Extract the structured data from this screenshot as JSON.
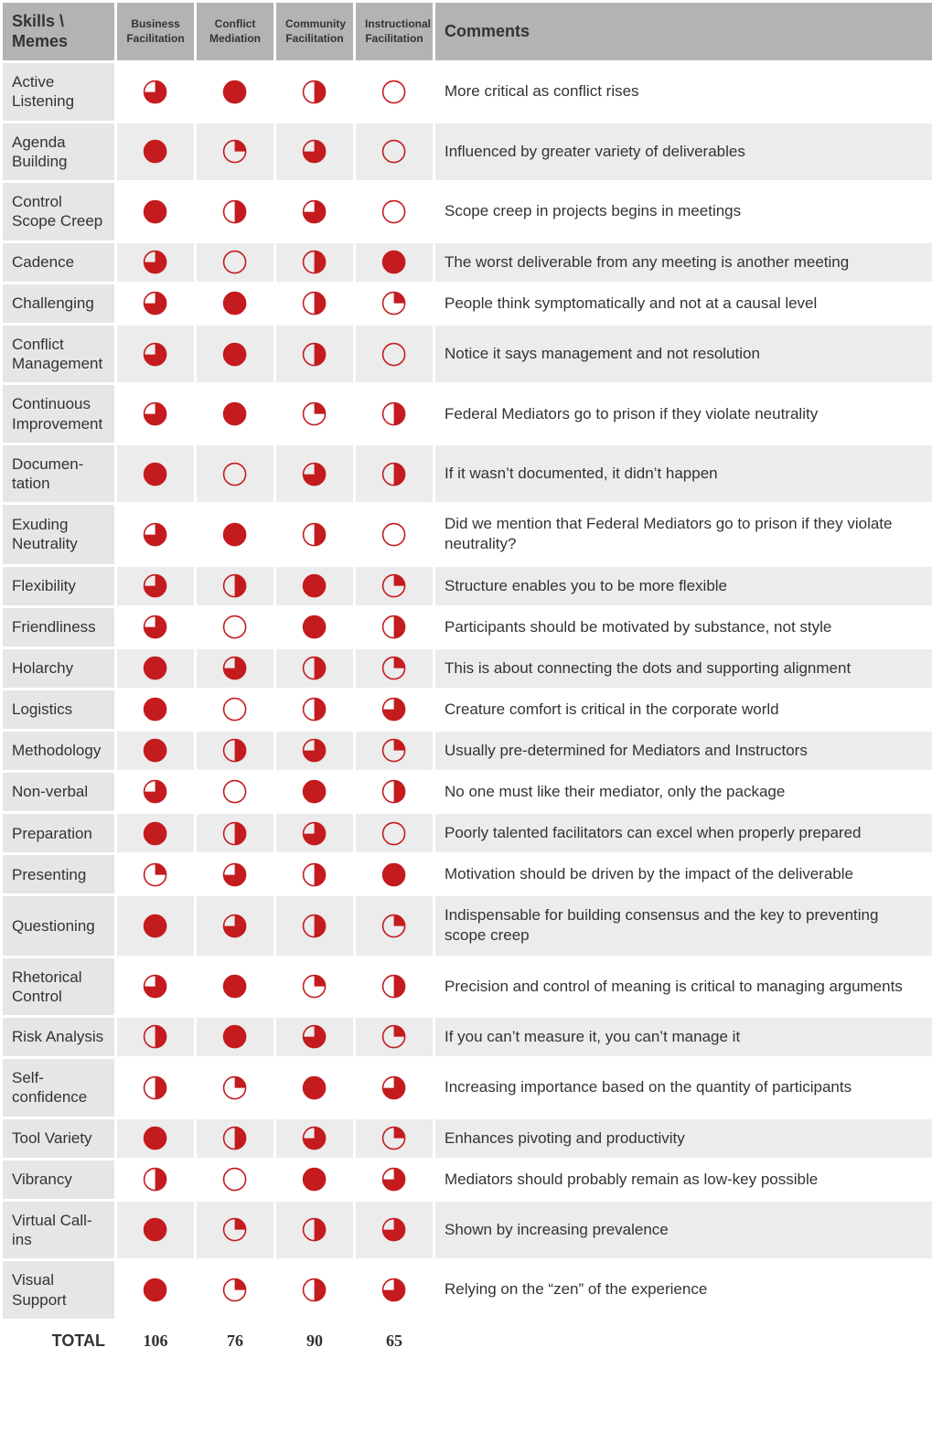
{
  "colors": {
    "ball": "#c41b1e",
    "header_bg": "#b3b3b3",
    "skill_bg": "#e6e6e6",
    "stripe_bg": "#ececec",
    "text": "#333333",
    "border": "#ffffff"
  },
  "ball": {
    "radius": 12,
    "stroke_width": 1.6
  },
  "headers": {
    "skill": "Skills \\\nMemes",
    "cols": [
      "Business Facilitation",
      "Conflict Mediation",
      "Community Facilitation",
      "Instructional Facilitation"
    ],
    "comments": "Comments"
  },
  "rows": [
    {
      "skill": "Active Listening",
      "ratings": [
        3,
        4,
        2,
        0
      ],
      "comment": "More critical as conflict rises"
    },
    {
      "skill": "Agenda Building",
      "ratings": [
        4,
        1,
        3,
        0
      ],
      "comment": "Influenced by greater variety of deliverables"
    },
    {
      "skill": "Control Scope Creep",
      "ratings": [
        4,
        2,
        3,
        0
      ],
      "comment": "Scope creep in projects begins in meetings"
    },
    {
      "skill": "Cadence",
      "ratings": [
        3,
        0,
        2,
        4
      ],
      "comment": "The worst deliverable from any meeting is another meeting"
    },
    {
      "skill": "Challenging",
      "ratings": [
        3,
        4,
        2,
        1
      ],
      "comment": "People think symptomatically and not at a causal level"
    },
    {
      "skill": "Conflict Management",
      "ratings": [
        3,
        4,
        2,
        0
      ],
      "comment": "Notice it says management and not resolution"
    },
    {
      "skill": "Continuous Improvement",
      "ratings": [
        3,
        4,
        1,
        2
      ],
      "comment": "Federal Mediators go to prison if they violate neutrality"
    },
    {
      "skill": "Documen-tation",
      "ratings": [
        4,
        0,
        3,
        2
      ],
      "comment": "If it wasn’t documented, it didn’t happen"
    },
    {
      "skill": "Exuding Neutrality",
      "ratings": [
        3,
        4,
        2,
        0
      ],
      "comment": "Did we mention that Federal Mediators go to prison if they violate neutrality?"
    },
    {
      "skill": "Flexibility",
      "ratings": [
        3,
        2,
        4,
        1
      ],
      "comment": "Structure enables you to be more flexible"
    },
    {
      "skill": "Friendliness",
      "ratings": [
        3,
        0,
        4,
        2
      ],
      "comment": "Participants should be motivated by substance, not style"
    },
    {
      "skill": "Holarchy",
      "ratings": [
        4,
        3,
        2,
        1
      ],
      "comment": "This is about connecting the dots and supporting alignment"
    },
    {
      "skill": "Logistics",
      "ratings": [
        4,
        0,
        2,
        3
      ],
      "comment": "Creature comfort is critical in the corporate world"
    },
    {
      "skill": "Methodology",
      "ratings": [
        4,
        2,
        3,
        1
      ],
      "comment": "Usually pre-determined for Mediators and Instructors"
    },
    {
      "skill": "Non-verbal",
      "ratings": [
        3,
        0,
        4,
        2
      ],
      "comment": "No one must like their mediator, only the package"
    },
    {
      "skill": "Preparation",
      "ratings": [
        4,
        2,
        3,
        0
      ],
      "comment": "Poorly talented facilitators can excel when properly prepared"
    },
    {
      "skill": "Presenting",
      "ratings": [
        1,
        3,
        2,
        4
      ],
      "comment": "Motivation should be driven by the impact of the deliverable"
    },
    {
      "skill": "Questioning",
      "ratings": [
        4,
        3,
        2,
        1
      ],
      "comment": "Indispensable for building consensus and the key to preventing scope creep"
    },
    {
      "skill": "Rhetorical Control",
      "ratings": [
        3,
        4,
        1,
        2
      ],
      "comment": "Precision and control of meaning is critical to managing arguments"
    },
    {
      "skill": "Risk Analysis",
      "ratings": [
        2,
        4,
        3,
        1
      ],
      "comment": "If you can’t measure it, you can’t manage it"
    },
    {
      "skill": "Self-confidence",
      "ratings": [
        2,
        1,
        4,
        3
      ],
      "comment": "Increasing importance based on the quantity of participants"
    },
    {
      "skill": "Tool Variety",
      "ratings": [
        4,
        2,
        3,
        1
      ],
      "comment": "Enhances pivoting and productivity"
    },
    {
      "skill": "Vibrancy",
      "ratings": [
        2,
        0,
        4,
        3
      ],
      "comment": "Mediators should probably remain as low-key possible"
    },
    {
      "skill": "Virtual Call-ins",
      "ratings": [
        4,
        1,
        2,
        3
      ],
      "comment": "Shown by increasing prevalence"
    },
    {
      "skill": "Visual Support",
      "ratings": [
        4,
        1,
        2,
        3
      ],
      "comment": "Relying on the “zen” of the experience"
    }
  ],
  "totals": {
    "label": "TOTAL",
    "values": [
      106,
      76,
      90,
      65
    ]
  }
}
